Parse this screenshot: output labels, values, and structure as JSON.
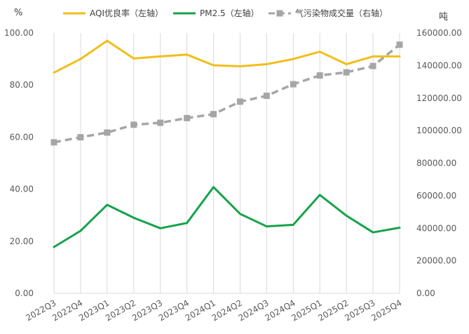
{
  "chart_data": {
    "type": "line",
    "categories": [
      "2022Q3",
      "2022Q4",
      "2023Q1",
      "2023Q2",
      "2023Q3",
      "2023Q4",
      "2024Q1",
      "2024Q2",
      "2024Q3",
      "2024Q4",
      "2025Q1",
      "2025Q2",
      "2025Q3",
      "2025Q4"
    ],
    "left_axis": {
      "unit": "%",
      "ylim": [
        0,
        100
      ],
      "ticks": [
        "0.00",
        "20.00",
        "40.00",
        "60.00",
        "80.00",
        "100.00"
      ]
    },
    "right_axis": {
      "unit": "吨",
      "ylim": [
        0,
        160000
      ],
      "ticks": [
        "0.00",
        "20000.00",
        "40000.00",
        "60000.00",
        "80000.00",
        "100000.00",
        "120000.00",
        "140000.00",
        "160000.00"
      ]
    },
    "series": [
      {
        "name": "AQI优良率（左轴）",
        "axis": "left",
        "color": "#F2BE1A",
        "style": "solid",
        "values": [
          84.8,
          90.0,
          97.0,
          90.2,
          91.0,
          91.7,
          87.6,
          87.2,
          88.0,
          90.0,
          92.8,
          88.0,
          91.0,
          91.0
        ]
      },
      {
        "name": "PM2.5（左轴）",
        "axis": "left",
        "color": "#16A34A",
        "style": "solid",
        "values": [
          17.8,
          24.0,
          34.0,
          29.0,
          25.0,
          27.0,
          40.8,
          30.5,
          25.7,
          26.3,
          37.8,
          29.8,
          23.4,
          25.2
        ]
      },
      {
        "name": "气污染物成交量（右轴）",
        "axis": "right",
        "color": "#A6A6A6",
        "style": "dashed",
        "marker": "square",
        "values": [
          92800,
          95900,
          98800,
          103600,
          104800,
          107700,
          110100,
          117800,
          121400,
          128500,
          133900,
          135800,
          139700,
          152800
        ]
      }
    ],
    "grid": "vertical",
    "legend_position": "top"
  }
}
